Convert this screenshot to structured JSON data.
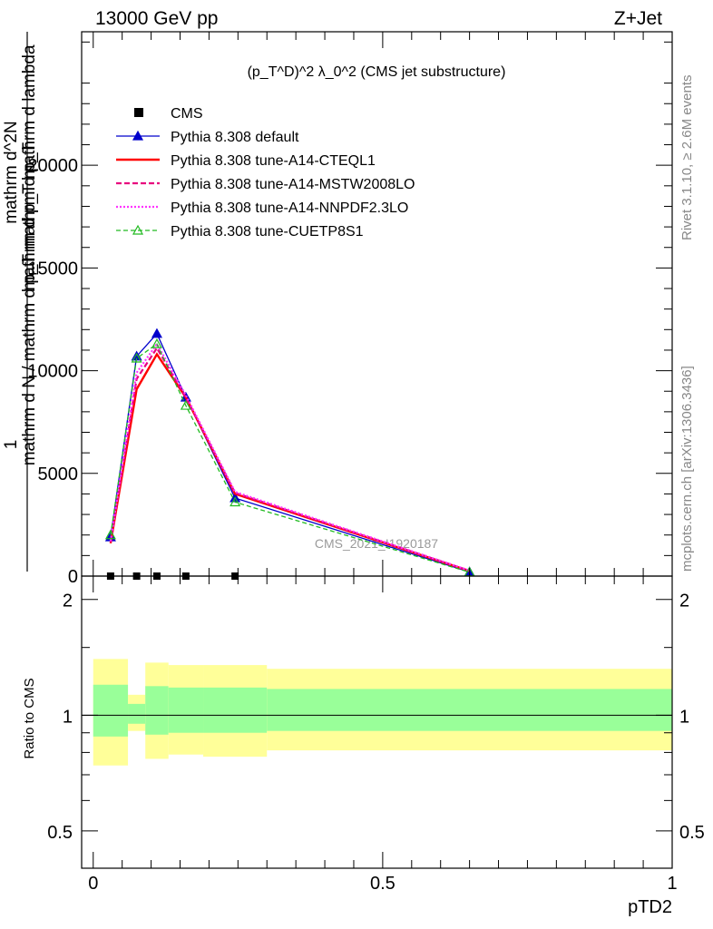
{
  "header": {
    "left": "13000 GeV pp",
    "right": "Z+Jet"
  },
  "plot_title": "(p_T^D)^2 λ_0^2 (CMS jet substructure)",
  "side_labels": {
    "rivet": "Rivet 3.1.10, ≥ 2.6M events",
    "mcplots": "mcplots.cern.ch [arXiv:1306.3436]"
  },
  "watermark": "CMS_2021_I1920187",
  "colors": {
    "cms": "#000000",
    "default": "#0000cc",
    "cteql1": "#ff0000",
    "mstw": "#e8007e",
    "nnpdf": "#ff33ff",
    "cuetp": "#22bb22",
    "band_inner": "#99ff99",
    "band_outer": "#ffff99"
  },
  "chart_data": [
    {
      "type": "line",
      "panel": "main",
      "ylabel_lines": [
        "1",
        "mathrm d N / mathrm d p_T mathrm d p_T",
        "mathrm d^2N",
        "mathrm d p_T mathrm d lambda"
      ],
      "yticks": [
        0,
        5000,
        10000,
        15000,
        20000
      ],
      "yticklabels": [
        "0",
        "5000",
        "10000",
        "15000",
        "20000"
      ],
      "ylim": [
        0,
        26500
      ],
      "xlim": [
        -0.02,
        1.0
      ],
      "series": [
        {
          "name": "CMS",
          "key": "cms",
          "style": "marker-square",
          "x": [
            0.03,
            0.075,
            0.11,
            0.16,
            0.245
          ],
          "y": [
            0,
            0,
            0,
            0,
            0
          ]
        },
        {
          "name": "Pythia 8.308 default",
          "key": "default",
          "style": "solid-triangle",
          "x": [
            0.03,
            0.075,
            0.11,
            0.16,
            0.245,
            0.65
          ],
          "y": [
            1900,
            10700,
            11800,
            8700,
            3800,
            200
          ]
        },
        {
          "name": "Pythia 8.308 tune-A14-CTEQL1",
          "key": "cteql1",
          "style": "solid-thick",
          "x": [
            0.03,
            0.075,
            0.11,
            0.16,
            0.245,
            0.65
          ],
          "y": [
            1600,
            9100,
            10800,
            8700,
            4000,
            250
          ]
        },
        {
          "name": "Pythia 8.308 tune-A14-MSTW2008LO",
          "key": "mstw",
          "style": "dashed",
          "x": [
            0.03,
            0.075,
            0.11,
            0.16,
            0.245,
            0.65
          ],
          "y": [
            1650,
            9600,
            11100,
            8700,
            4050,
            260
          ]
        },
        {
          "name": "Pythia 8.308 tune-A14-NNPDF2.3LO",
          "key": "nnpdf",
          "style": "dotted",
          "x": [
            0.03,
            0.075,
            0.11,
            0.16,
            0.245,
            0.65
          ],
          "y": [
            1700,
            9900,
            11300,
            8800,
            4100,
            270
          ]
        },
        {
          "name": "Pythia 8.308 tune-CUETP8S1",
          "key": "cuetp",
          "style": "dashed-triangle-open",
          "x": [
            0.03,
            0.075,
            0.11,
            0.16,
            0.245,
            0.65
          ],
          "y": [
            2000,
            10600,
            11300,
            8300,
            3600,
            190
          ]
        }
      ]
    },
    {
      "type": "area",
      "panel": "ratio",
      "ylabel": "Ratio to CMS",
      "xlabel": "pTD2",
      "yticks": [
        0.5,
        1,
        2
      ],
      "yticklabels": [
        "0.5",
        "1",
        "2"
      ],
      "ylim": [
        0.4,
        2.3
      ],
      "xticks": [
        0,
        0.5,
        1
      ],
      "xticklabels": [
        "0",
        "0.5",
        "1"
      ],
      "xlim": [
        -0.02,
        1.0
      ],
      "reference": 1,
      "bins": [
        {
          "x0": 0.0,
          "x1": 0.06,
          "inner": [
            0.88,
            1.2
          ],
          "outer": [
            0.74,
            1.4
          ]
        },
        {
          "x0": 0.06,
          "x1": 0.09,
          "inner": [
            0.95,
            1.07
          ],
          "outer": [
            0.91,
            1.13
          ]
        },
        {
          "x0": 0.09,
          "x1": 0.13,
          "inner": [
            0.89,
            1.19
          ],
          "outer": [
            0.77,
            1.37
          ]
        },
        {
          "x0": 0.13,
          "x1": 0.19,
          "inner": [
            0.9,
            1.18
          ],
          "outer": [
            0.79,
            1.35
          ]
        },
        {
          "x0": 0.19,
          "x1": 0.3,
          "inner": [
            0.9,
            1.18
          ],
          "outer": [
            0.78,
            1.35
          ]
        },
        {
          "x0": 0.3,
          "x1": 1.0,
          "inner": [
            0.91,
            1.17
          ],
          "outer": [
            0.81,
            1.32
          ]
        }
      ]
    }
  ]
}
